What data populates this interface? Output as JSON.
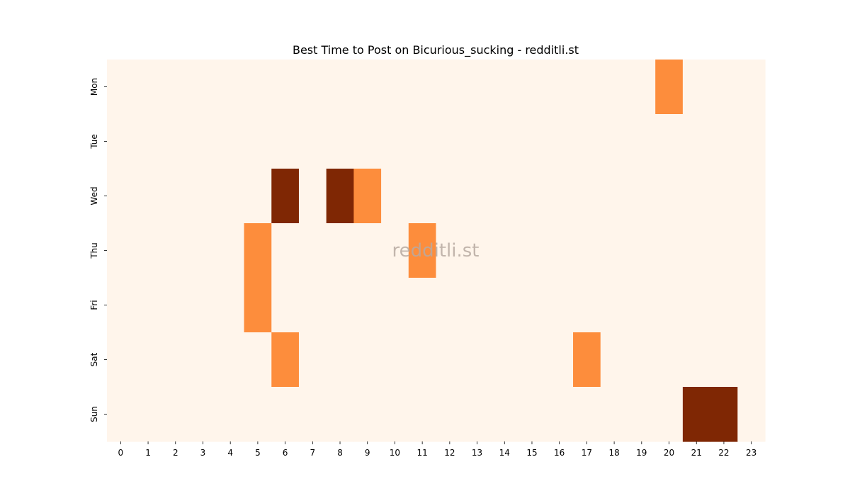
{
  "chart_data": {
    "type": "heatmap",
    "title": "Best Time to Post on Bicurious_sucking - redditli.st",
    "watermark": "redditli.st",
    "xlabel": "",
    "ylabel": "",
    "x_categories": [
      "0",
      "1",
      "2",
      "3",
      "4",
      "5",
      "6",
      "7",
      "8",
      "9",
      "10",
      "11",
      "12",
      "13",
      "14",
      "15",
      "16",
      "17",
      "18",
      "19",
      "20",
      "21",
      "22",
      "23"
    ],
    "y_categories": [
      "Mon",
      "Tue",
      "Wed",
      "Thu",
      "Fri",
      "Sat",
      "Sun"
    ],
    "values": [
      [
        0,
        0,
        0,
        0,
        0,
        0,
        0,
        0,
        0,
        0,
        0,
        0,
        0,
        0,
        0,
        0,
        0,
        0,
        0,
        0,
        1,
        0,
        0,
        0
      ],
      [
        0,
        0,
        0,
        0,
        0,
        0,
        0,
        0,
        0,
        0,
        0,
        0,
        0,
        0,
        0,
        0,
        0,
        0,
        0,
        0,
        0,
        0,
        0,
        0
      ],
      [
        0,
        0,
        0,
        0,
        0,
        0,
        2,
        0,
        2,
        1,
        0,
        0,
        0,
        0,
        0,
        0,
        0,
        0,
        0,
        0,
        0,
        0,
        0,
        0
      ],
      [
        0,
        0,
        0,
        0,
        0,
        1,
        0,
        0,
        0,
        0,
        0,
        1,
        0,
        0,
        0,
        0,
        0,
        0,
        0,
        0,
        0,
        0,
        0,
        0
      ],
      [
        0,
        0,
        0,
        0,
        0,
        1,
        0,
        0,
        0,
        0,
        0,
        0,
        0,
        0,
        0,
        0,
        0,
        0,
        0,
        0,
        0,
        0,
        0,
        0
      ],
      [
        0,
        0,
        0,
        0,
        0,
        0,
        1,
        0,
        0,
        0,
        0,
        0,
        0,
        0,
        0,
        0,
        0,
        1,
        0,
        0,
        0,
        0,
        0,
        0
      ],
      [
        0,
        0,
        0,
        0,
        0,
        0,
        0,
        0,
        0,
        0,
        0,
        0,
        0,
        0,
        0,
        0,
        0,
        0,
        0,
        0,
        0,
        2,
        2,
        0
      ]
    ],
    "color_scale": [
      "#fff5eb",
      "#fd8d3c",
      "#7f2704"
    ],
    "grid": false,
    "legend": "none"
  }
}
